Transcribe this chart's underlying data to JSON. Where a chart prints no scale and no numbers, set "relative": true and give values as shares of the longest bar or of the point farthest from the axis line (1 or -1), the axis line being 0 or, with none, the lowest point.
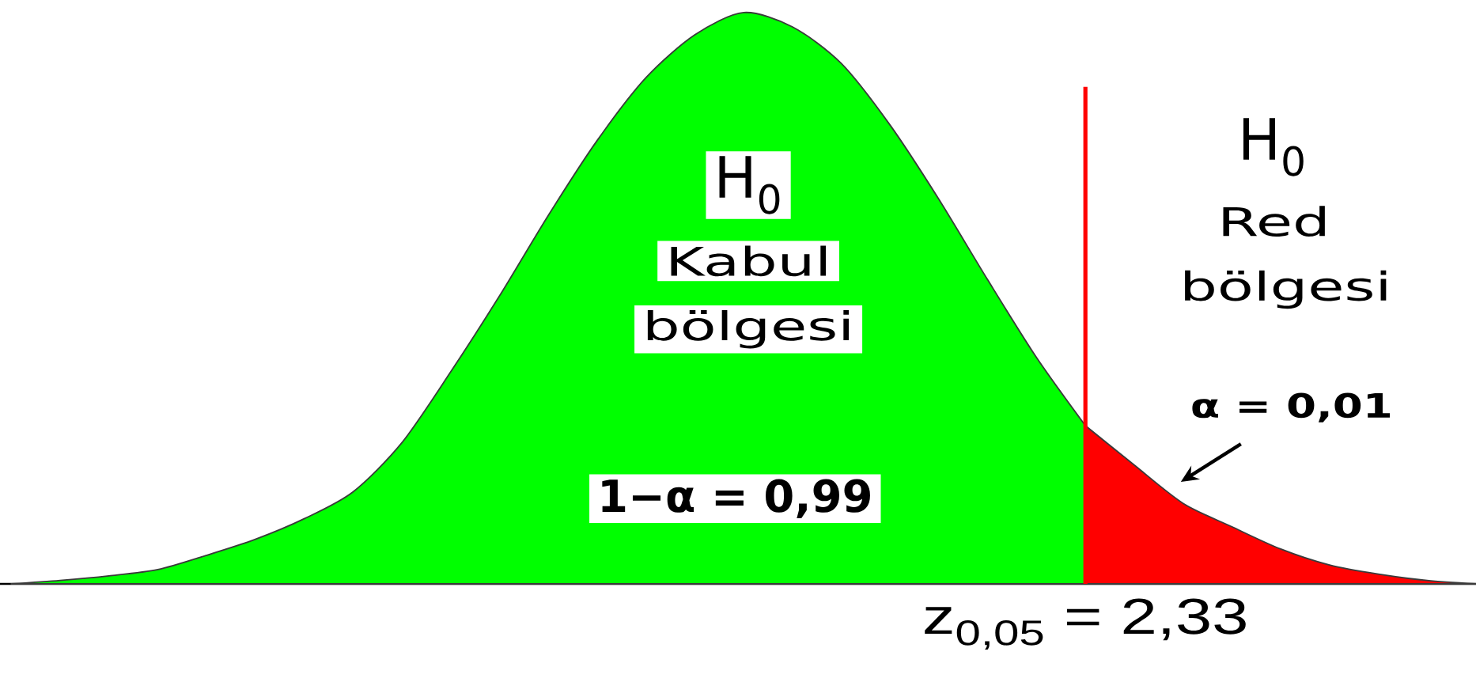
{
  "chart_data": {
    "type": "area",
    "relative": true,
    "categories": [
      null,
      null,
      null,
      null,
      null,
      null,
      null,
      null,
      null,
      null,
      null,
      null,
      null,
      null,
      null,
      null,
      null,
      null,
      null,
      null,
      null,
      null,
      null,
      null,
      null,
      null,
      null,
      null,
      null,
      null,
      null
    ],
    "series": [
      {
        "color": "#00ff00",
        "values": [
          0,
          0.006,
          0.014,
          0.025,
          0.05,
          0.078,
          0.114,
          0.161,
          0.247,
          0.371,
          0.504,
          0.645,
          0.776,
          0.886,
          0.961,
          1,
          0.975,
          0.911,
          0.803,
          0.673,
          0.532,
          0.396,
          0.277,
          null,
          null,
          null,
          null,
          null,
          null,
          null,
          null
        ]
      },
      {
        "color": "#ff0000",
        "values": [
          null,
          null,
          null,
          null,
          null,
          null,
          null,
          null,
          null,
          null,
          null,
          null,
          null,
          null,
          null,
          null,
          null,
          null,
          null,
          null,
          null,
          null,
          0.277,
          0.208,
          0.141,
          0.1,
          0.061,
          0.033,
          0.017,
          0.006,
          0
        ]
      }
    ],
    "ref_lines": [
      {
        "axis": "x",
        "label": "z$_{0,05}$ = 2,33",
        "color": "#ff0000"
      }
    ],
    "annotations": [
      "H$_{0}$",
      "Kabul",
      "bölgesi",
      "1−α = 0,99",
      "H$_{0}$",
      "Red",
      "bölgesi",
      "α = 0,01"
    ]
  }
}
